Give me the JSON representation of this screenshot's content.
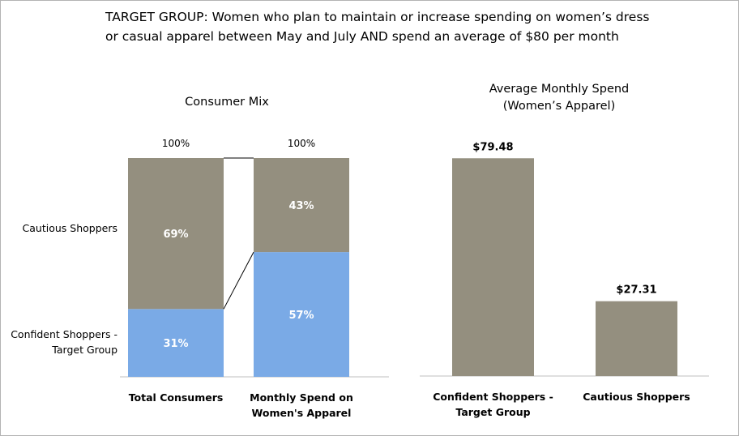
{
  "header": {
    "line1": "TARGET GROUP: Women who plan to maintain or increase spending on women’s dress",
    "line2": "or casual apparel between May and July AND spend an average of $80 per month"
  },
  "colors": {
    "cautious": "#948f7f",
    "confident": "#7aaae6",
    "text_light": "#ffffff"
  },
  "chart_data": [
    {
      "type": "bar",
      "stacked": true,
      "percent": true,
      "title": "Consumer Mix",
      "categories": [
        "Total Consumers",
        "Monthly Spend on Women's Apparel"
      ],
      "category_lines": [
        [
          "Total Consumers"
        ],
        [
          "Monthly Spend on",
          "Women's Apparel"
        ]
      ],
      "totals_label": [
        "100%",
        "100%"
      ],
      "series": [
        {
          "name": "Confident Shoppers - Target Group",
          "name_lines": [
            "Confident Shoppers -",
            "Target Group"
          ],
          "values": [
            31,
            57
          ],
          "labels": [
            "31%",
            "57%"
          ],
          "color": "#7aaae6"
        },
        {
          "name": "Cautious Shoppers",
          "name_lines": [
            "Cautious Shoppers"
          ],
          "values": [
            69,
            43
          ],
          "labels": [
            "69%",
            "43%"
          ],
          "color": "#948f7f"
        }
      ],
      "ylim": [
        0,
        100
      ],
      "legend": "left",
      "grid": false
    },
    {
      "type": "bar",
      "title": "Average Monthly Spend",
      "subtitle": "(Women’s Apparel)",
      "categories": [
        "Confident Shoppers - Target Group",
        "Cautious Shoppers"
      ],
      "category_lines": [
        [
          "Confident Shoppers -",
          "Target Group"
        ],
        [
          "Cautious Shoppers"
        ]
      ],
      "values": [
        79.48,
        27.31
      ],
      "labels": [
        "$79.48",
        "$27.31"
      ],
      "ylim": [
        0,
        85
      ],
      "color": "#948f7f",
      "grid": false
    }
  ]
}
